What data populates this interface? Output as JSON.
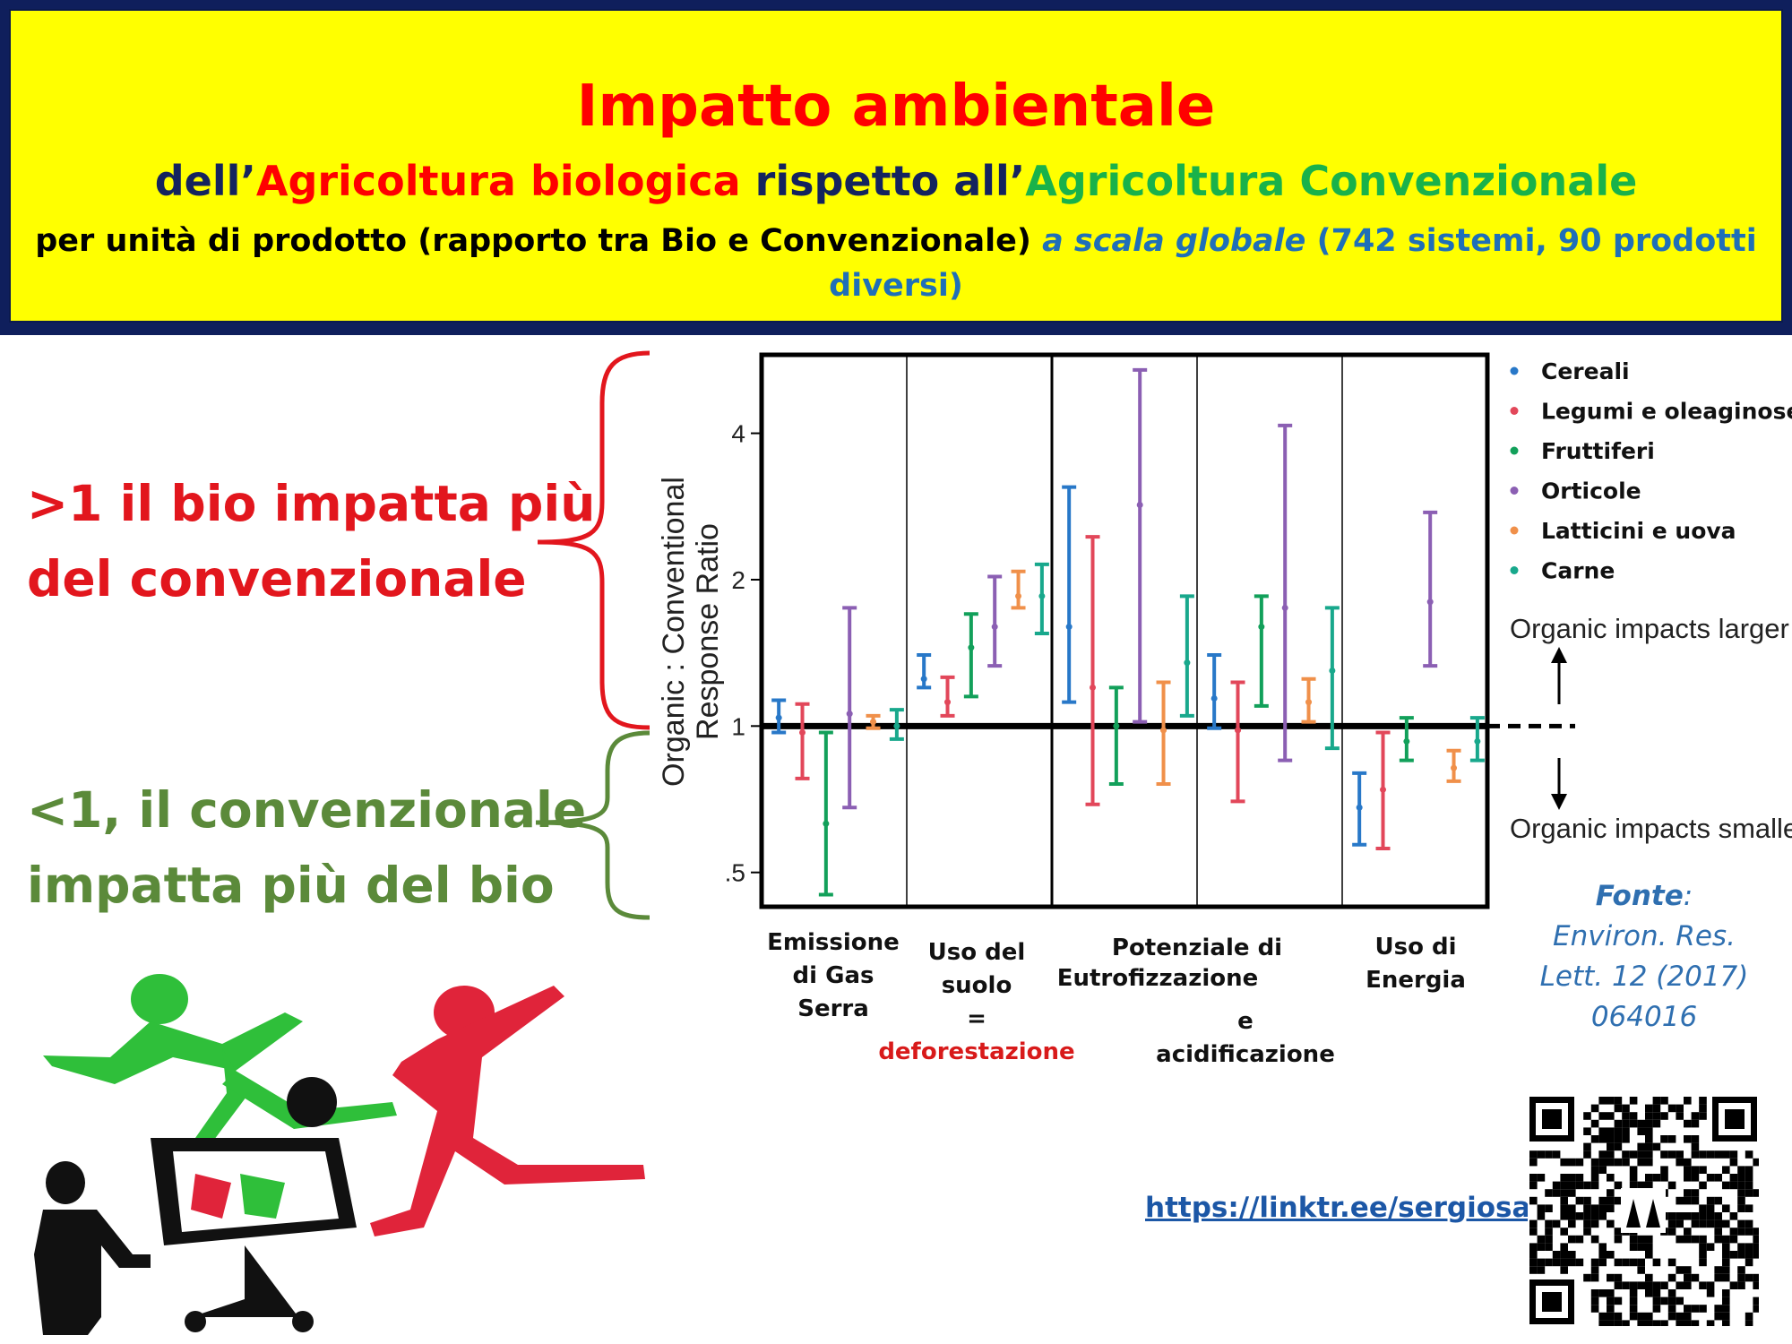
{
  "header": {
    "title": "Impatto ambientale",
    "subtitle": {
      "part1": "dell’",
      "part2": "Agricoltura biologica",
      "part3": " rispetto all’",
      "part4": "Agricoltura Convenzionale"
    },
    "line3": {
      "part1": "per unità di prodotto (rapporto tra Bio e Convenzionale) ",
      "part2": "a scala globale",
      "part3": " (742 sistemi, 90 prodotti diversi)"
    }
  },
  "side": {
    "above_line1": ">1 il bio impatta più",
    "above_line2": "del convenzionale",
    "below_line1": "<1, il convenzionale",
    "below_line2": "impatta più del bio"
  },
  "categories": {
    "c1": [
      "Emissione",
      "di Gas",
      "Serra"
    ],
    "c2": [
      "Uso del",
      "suolo",
      "=",
      "deforestazione"
    ],
    "c3a": "Potenziale di",
    "c3b": "Eutrofizzazione",
    "c3c": "e acidificazione",
    "c4": [
      "Uso di",
      "Energia"
    ]
  },
  "source": {
    "label": "Fonte",
    "colon": ":",
    "line1": "Environ. Res.",
    "line2": "Lett. 12 (2017)",
    "line3": "064016"
  },
  "link": "https://linktr.ee/sergiosaia",
  "colors": {
    "Cereali": "#2878c8",
    "Legumi e oleaginose": "#e2475a",
    "Fruttiferi": "#12a05a",
    "Orticole": "#8b5fb3",
    "Latticini e uova": "#f0904a",
    "Carne": "#18a88c"
  },
  "chart_data": {
    "type": "errorbar",
    "ylabel": "Organic : Conventional Response Ratio",
    "yscale": "log",
    "ylim": [
      0.43,
      6.0
    ],
    "yticks": [
      0.5,
      1,
      2,
      4
    ],
    "yticklabels": [
      ".5",
      "1",
      "2",
      "4"
    ],
    "reference_line": 1,
    "annotations": [
      "Organic impacts larger",
      "Organic impacts smaller"
    ],
    "groups": [
      "Emissione di Gas Serra",
      "Uso del suolo = deforestazione",
      "Potenziale di Eutrofizzazione",
      "e acidificazione",
      "Uso di Energia"
    ],
    "legend": {
      "position": "right",
      "entries": [
        "Cereali",
        "Legumi e oleaginose",
        "Fruttiferi",
        "Orticole",
        "Latticini e uova",
        "Carne"
      ]
    },
    "series": [
      {
        "name": "Cereali",
        "points": [
          {
            "group": 0,
            "low": 0.97,
            "mid": 1.04,
            "high": 1.13
          },
          {
            "group": 1,
            "low": 1.2,
            "mid": 1.25,
            "high": 1.4
          },
          {
            "group": 2,
            "low": 1.12,
            "mid": 1.6,
            "high": 3.1
          },
          {
            "group": 3,
            "low": 0.99,
            "mid": 1.14,
            "high": 1.4
          },
          {
            "group": 4,
            "low": 0.57,
            "mid": 0.68,
            "high": 0.8
          }
        ]
      },
      {
        "name": "Legumi e oleaginose",
        "points": [
          {
            "group": 0,
            "low": 0.78,
            "mid": 0.97,
            "high": 1.11
          },
          {
            "group": 1,
            "low": 1.05,
            "mid": 1.12,
            "high": 1.26
          },
          {
            "group": 2,
            "low": 0.69,
            "mid": 1.2,
            "high": 2.45
          },
          {
            "group": 3,
            "low": 0.7,
            "mid": 0.98,
            "high": 1.23
          },
          {
            "group": 4,
            "low": 0.56,
            "mid": 0.74,
            "high": 0.97
          }
        ]
      },
      {
        "name": "Fruttiferi",
        "points": [
          {
            "group": 0,
            "low": 0.45,
            "mid": 0.63,
            "high": 0.97
          },
          {
            "group": 1,
            "low": 1.15,
            "mid": 1.45,
            "high": 1.7
          },
          {
            "group": 2,
            "low": 0.76,
            "mid": 1.0,
            "high": 1.2
          },
          {
            "group": 3,
            "low": 1.1,
            "mid": 1.6,
            "high": 1.85
          },
          {
            "group": 4,
            "low": 0.85,
            "mid": 0.93,
            "high": 1.04
          }
        ]
      },
      {
        "name": "Orticole",
        "points": [
          {
            "group": 0,
            "low": 0.68,
            "mid": 1.06,
            "high": 1.75
          },
          {
            "group": 1,
            "low": 1.33,
            "mid": 1.6,
            "high": 2.03
          },
          {
            "group": 2,
            "low": 1.02,
            "mid": 2.85,
            "high": 5.4
          },
          {
            "group": 3,
            "low": 0.85,
            "mid": 1.75,
            "high": 4.15
          },
          {
            "group": 4,
            "low": 1.33,
            "mid": 1.8,
            "high": 2.75
          }
        ]
      },
      {
        "name": "Latticini e uova",
        "points": [
          {
            "group": 0,
            "low": 0.99,
            "mid": 1.02,
            "high": 1.05
          },
          {
            "group": 1,
            "low": 1.75,
            "mid": 1.85,
            "high": 2.08
          },
          {
            "group": 2,
            "low": 0.76,
            "mid": 0.98,
            "high": 1.23
          },
          {
            "group": 3,
            "low": 1.02,
            "mid": 1.12,
            "high": 1.25
          },
          {
            "group": 4,
            "low": 0.77,
            "mid": 0.82,
            "high": 0.89
          }
        ]
      },
      {
        "name": "Carne",
        "points": [
          {
            "group": 0,
            "low": 0.94,
            "mid": 1.0,
            "high": 1.08
          },
          {
            "group": 1,
            "low": 1.55,
            "mid": 1.85,
            "high": 2.15
          },
          {
            "group": 2,
            "low": 1.05,
            "mid": 1.35,
            "high": 1.85
          },
          {
            "group": 3,
            "low": 0.9,
            "mid": 1.3,
            "high": 1.75
          },
          {
            "group": 4,
            "low": 0.85,
            "mid": 0.93,
            "high": 1.04
          }
        ]
      }
    ]
  }
}
